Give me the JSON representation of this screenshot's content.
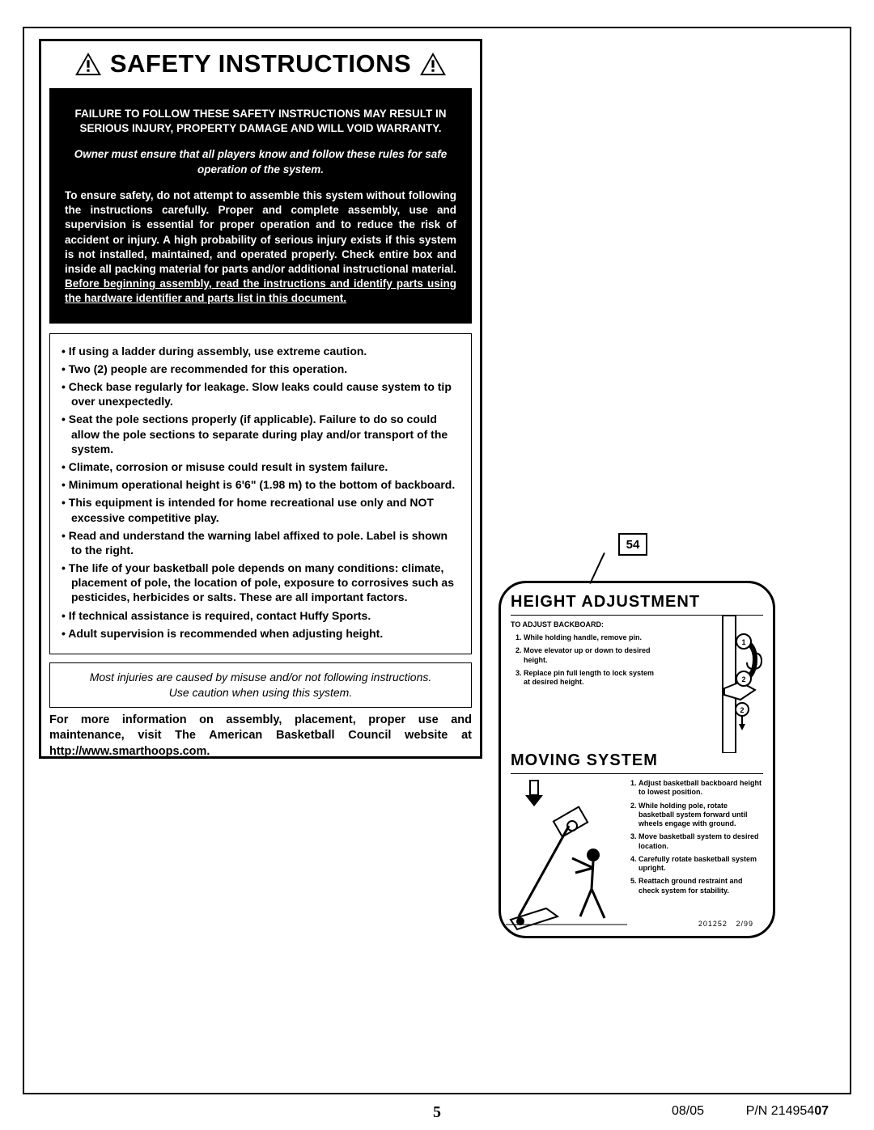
{
  "safety": {
    "title": "SAFETY INSTRUCTIONS",
    "failure_line": "FAILURE TO FOLLOW THESE SAFETY INSTRUCTIONS MAY RESULT IN SERIOUS INJURY, PROPERTY DAMAGE AND WILL VOID WARRANTY.",
    "owner_line": "Owner must ensure that all players know and follow these rules for safe operation of the system.",
    "paragraph_plain": "To ensure safety, do not attempt to assemble this system without following the instructions carefully. Proper and complete assembly, use and supervision is essential for proper operation and to reduce the risk of accident or injury. A high probability of serious injury exists if this system is not installed, maintained, and operated properly. Check entire box and inside all packing material for parts and/or additional instructional material. ",
    "paragraph_underlined": "Before beginning assembly, read the instructions and identify parts using the hardware identifier and parts list in this document.",
    "bullets": [
      "If using a ladder during assembly, use extreme caution.",
      "Two (2) people are recommended for this operation.",
      "Check base regularly for leakage. Slow leaks could cause system to tip over unexpectedly.",
      "Seat the pole sections properly (if applicable). Failure to do so could allow the pole sections to separate during play and/or transport of the system.",
      "Climate, corrosion or misuse could result in system failure.",
      "Minimum operational height is 6'6\" (1.98 m) to the bottom of backboard.",
      "This equipment is intended for home recreational use only and NOT excessive competitive play.",
      "Read and understand the warning label affixed to pole.  Label is shown to the right.",
      "The life of your basketball pole depends on many conditions: climate, placement of pole, the location of pole, exposure to corrosives such as pesticides, herbicides or salts. These are all important factors.",
      "If technical assistance is required, contact Huffy Sports.",
      "Adult supervision is recommended when adjusting height."
    ],
    "caution_line1": "Most injuries are caused by misuse and/or not following instructions.",
    "caution_line2": "Use caution when using this system.",
    "more_info": "For more information on assembly, placement, proper use and maintenance, visit The American Basketball Council website at http://www.smarthoops.com."
  },
  "label": {
    "callout_number": "54",
    "height_adj_title": "HEIGHT ADJUSTMENT",
    "height_adj_sub": "TO ADJUST BACKBOARD:",
    "height_adj_steps": [
      "While holding handle, remove pin.",
      "Move elevator up or down to desired height.",
      "Replace pin full length to lock system at desired height."
    ],
    "moving_title": "MOVING SYSTEM",
    "moving_steps": [
      "Adjust basketball backboard height to lowest position.",
      "While holding pole, rotate basketball system forward until wheels engage with ground.",
      "Move basketball system to desired location.",
      "Carefully rotate basketball system upright.",
      "Reattach ground restraint and check system for stability."
    ],
    "foot_id": "201252",
    "foot_date": "2/99"
  },
  "footer": {
    "page_number": "5",
    "date": "08/05",
    "pn_prefix": "P/N 214954",
    "pn_bold": "07"
  },
  "colors": {
    "black": "#000000",
    "white": "#ffffff"
  }
}
